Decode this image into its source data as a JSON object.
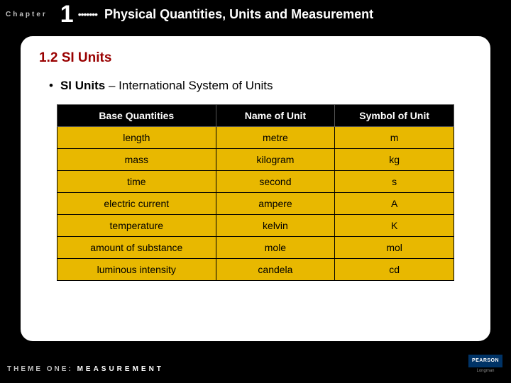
{
  "header": {
    "chapter_label": "Chapter",
    "chapter_number": "1",
    "dots": "•••••••",
    "title": "Physical Quantities, Units and Measurement"
  },
  "section": {
    "title": "1.2 SI Units",
    "bullet_bold": "SI Units",
    "bullet_rest": " – International System of Units"
  },
  "table": {
    "columns": [
      "Base Quantities",
      "Name of Unit",
      "Symbol of Unit"
    ],
    "rows": [
      [
        "length",
        "metre",
        "m"
      ],
      [
        "mass",
        "kilogram",
        "kg"
      ],
      [
        "time",
        "second",
        "s"
      ],
      [
        "electric current",
        "ampere",
        "A"
      ],
      [
        "temperature",
        "kelvin",
        "K"
      ],
      [
        "amount of substance",
        "mole",
        "mol"
      ],
      [
        "luminous intensity",
        "candela",
        "cd"
      ]
    ],
    "header_bg": "#000000",
    "header_fg": "#ffffff",
    "cell_bg": "#e8b800",
    "cell_fg": "#000000",
    "border_color": "#000000",
    "col_widths": [
      "40%",
      "30%",
      "30%"
    ],
    "font_size": 14
  },
  "footer": {
    "theme_label": "THEME ONE:",
    "theme_value": "MEASUREMENT"
  },
  "logo": {
    "brand": "PEARSON",
    "sub": "Longman"
  },
  "colors": {
    "page_bg": "#000000",
    "panel_bg": "#ffffff",
    "section_title": "#990000",
    "muted_text": "#c0c0c0"
  }
}
